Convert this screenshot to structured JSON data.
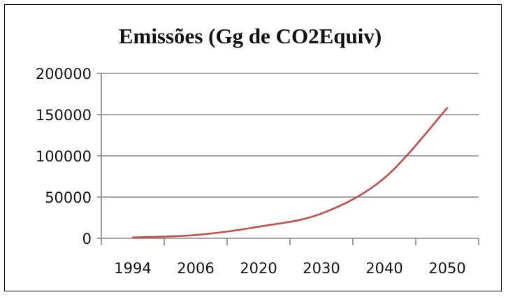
{
  "chart_data": {
    "type": "line",
    "title": "Emissões (Gg de CO2Equiv)",
    "xlabel": "",
    "ylabel": "",
    "categories": [
      "1994",
      "2006",
      "2020",
      "2030",
      "2040",
      "2050"
    ],
    "series": [
      {
        "values": [
          1000,
          4000,
          14000,
          30000,
          73000,
          158000
        ]
      }
    ],
    "y_ticks": [
      "0",
      "50000",
      "100000",
      "150000",
      "200000"
    ],
    "ylim": [
      0,
      200000
    ],
    "grid": true,
    "legend": "none",
    "colors": {
      "line": "#c0504d",
      "grid": "#868686",
      "axis": "#868686"
    }
  }
}
